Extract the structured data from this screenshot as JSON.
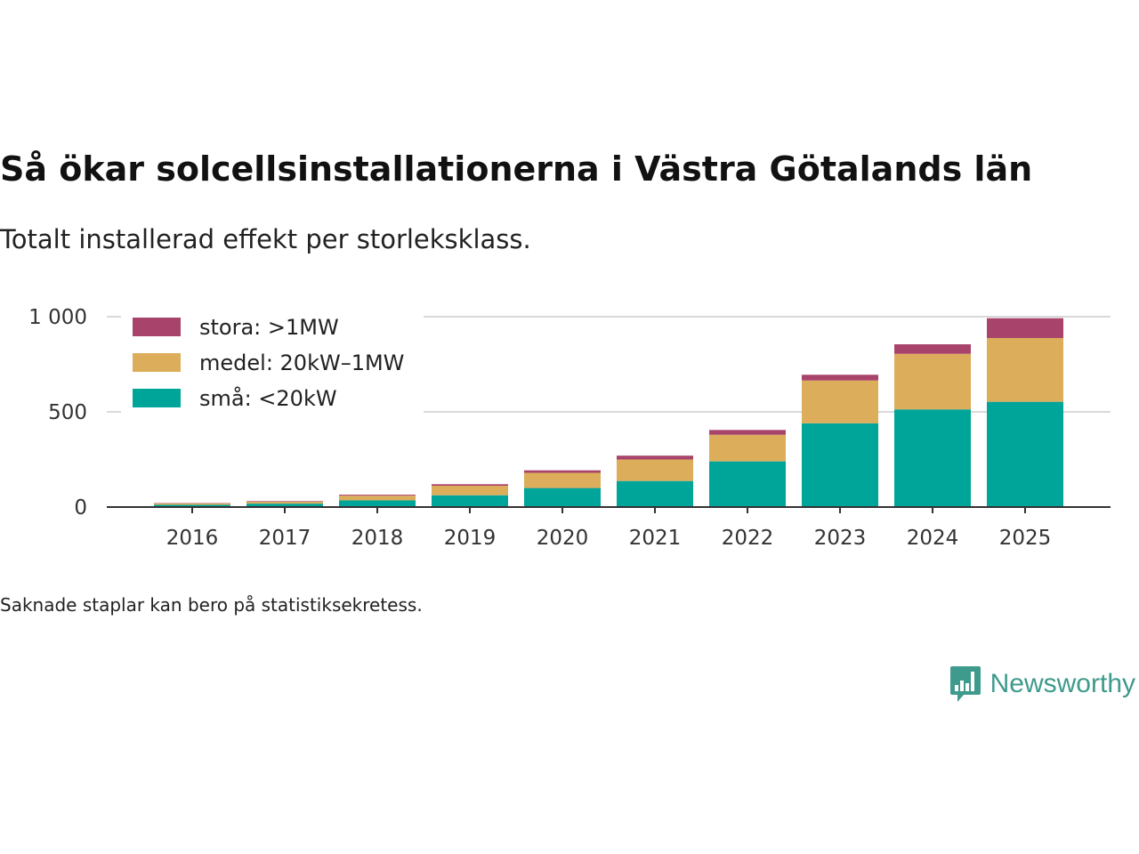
{
  "header": {
    "title": "Så ökar solcellsinstallationerna i Västra Götalands län",
    "subtitle": "Totalt installerad effekt per storleksklass."
  },
  "footer": {
    "note": "Saknade staplar kan bero på statistiksekretess.",
    "brand": "Newsworthy"
  },
  "colors": {
    "small": "#00a59a",
    "medium": "#dcad5a",
    "large": "#a8436b",
    "grid": "#d9d9d9",
    "axis": "#333333",
    "brand": "#3e9a8c"
  },
  "chart_data": {
    "type": "bar",
    "stacked": true,
    "title": "Så ökar solcellsinstallationerna i Västra Götalands län",
    "subtitle": "Totalt installerad effekt per storleksklass.",
    "xlabel": "",
    "ylabel": "",
    "ylim": [
      0,
      1000
    ],
    "yticks": [
      0,
      500,
      1000
    ],
    "ytick_labels": [
      "0",
      "500",
      "1 000"
    ],
    "grid": true,
    "legend_position": "top-left",
    "categories": [
      "2016",
      "2017",
      "2018",
      "2019",
      "2020",
      "2021",
      "2022",
      "2023",
      "2024",
      "2025"
    ],
    "series": [
      {
        "name": "små: <20kW",
        "color": "#00a59a",
        "values": [
          12,
          18,
          35,
          62,
          100,
          137,
          240,
          440,
          513,
          553
        ]
      },
      {
        "name": "medel: 20kW–1MW",
        "color": "#dcad5a",
        "values": [
          7,
          10,
          25,
          50,
          80,
          113,
          140,
          225,
          292,
          335
        ]
      },
      {
        "name": "stora: >1MW",
        "color": "#a8436b",
        "values": [
          2,
          3,
          5,
          8,
          13,
          20,
          25,
          30,
          50,
          104
        ]
      }
    ],
    "legend_order": [
      2,
      1,
      0
    ]
  }
}
